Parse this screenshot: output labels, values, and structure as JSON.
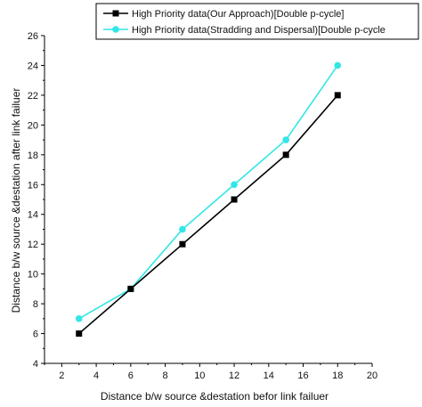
{
  "chart_data": {
    "type": "line",
    "title": "",
    "xlabel": "Distance b/w source &destation befor link failuer",
    "ylabel": "Distance b/w source &destation after link failuer",
    "xlim": [
      1,
      20
    ],
    "ylim": [
      4,
      26
    ],
    "x_ticks": [
      2,
      4,
      6,
      8,
      10,
      12,
      14,
      16,
      18,
      20
    ],
    "y_ticks": [
      4,
      6,
      8,
      10,
      12,
      14,
      16,
      18,
      20,
      22,
      24,
      26
    ],
    "grid": false,
    "legend_position": "top",
    "series": [
      {
        "name": "High Priority data(Our Approach)[Double p-cycle]",
        "color": "#000000",
        "marker": "square",
        "x": [
          3,
          6,
          9,
          12,
          15,
          18
        ],
        "y": [
          6,
          9,
          12,
          15,
          18,
          22
        ]
      },
      {
        "name": "High Priority data(Stradding and Dispersal)[Double p-cycle",
        "color": "#33e6e6",
        "marker": "circle",
        "x": [
          3,
          6,
          9,
          12,
          15,
          18
        ],
        "y": [
          7,
          9,
          13,
          16,
          19,
          24
        ]
      }
    ]
  }
}
